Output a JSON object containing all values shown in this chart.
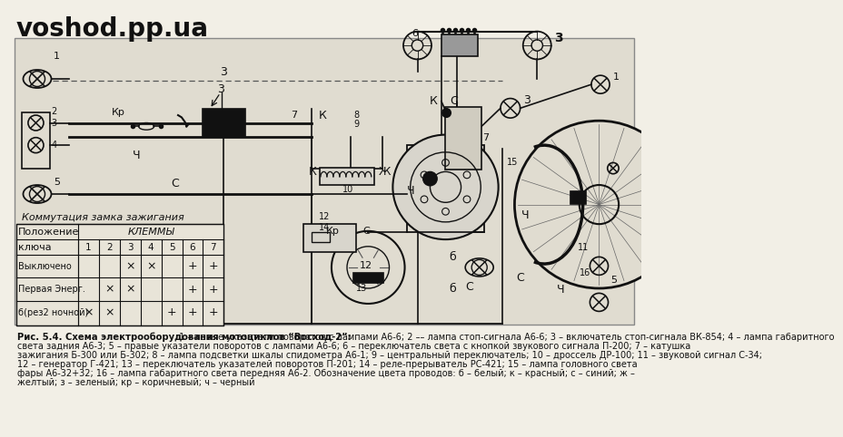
{
  "bg_color": "#f2efe6",
  "diagram_bg": "#e0dcd0",
  "watermark": "voshod.pp.ua",
  "table_title": "Коммутация замка зажигания",
  "table_col1": "Положение",
  "table_col2": "ключа",
  "table_terminals": "КЛЕММЫ",
  "table_nums": [
    "1",
    "2",
    "3",
    "4",
    "5",
    "6",
    "7"
  ],
  "table_rows": [
    {
      "label": "Выключено",
      "vals": [
        "",
        "",
        "×",
        "×",
        "",
        "+",
        "+"
      ]
    },
    {
      "label": "Первая Энерг.",
      "vals": [
        "",
        "×",
        "×",
        "",
        "",
        "+",
        "+"
      ]
    },
    {
      "label": "б(рез2 ночной)",
      "vals": [
        "×",
        "×",
        "",
        "",
        "+",
        "+",
        "+"
      ]
    }
  ],
  "caption_bold": "Рис. 5.4. Схема электрооборудования мотоциклов “Восход-2”:",
  "caption_lines": [
    " 1 – левые указатели поворотов с лампами А6-6; 2 –– лампа стоп-сигнала А6-6; 3 – включатель стоп-сигнала ВК-854; 4 – лампа габаритного",
    "света задния А6-3; 5 – правые указатели поворотов с лампами А6-6; 6 – переключатель света с кнопкой звукового сигнала П-200; 7 – катушка",
    "зажигания Б-300 или Б-302; 8 – лампа подсветки шкалы спидометра А6-1; 9 – центральный переключатель; 10 – дроссель ДР-100; 11 – звуковой сигнал С-34;",
    "12 – генератор Г-421; 13 – переключатель указателей поворотов П-201; 14 – реле-прерыватель РС-421; 15 – лампа головного света",
    "фары А6-32+32; 16 – лампа габаритного света передняя А6-2. Обозначение цвета проводов: б – белый; к – красный; с – синий; ж –",
    "желтый; з – зеленый; кр – коричневый; ч – черный"
  ]
}
